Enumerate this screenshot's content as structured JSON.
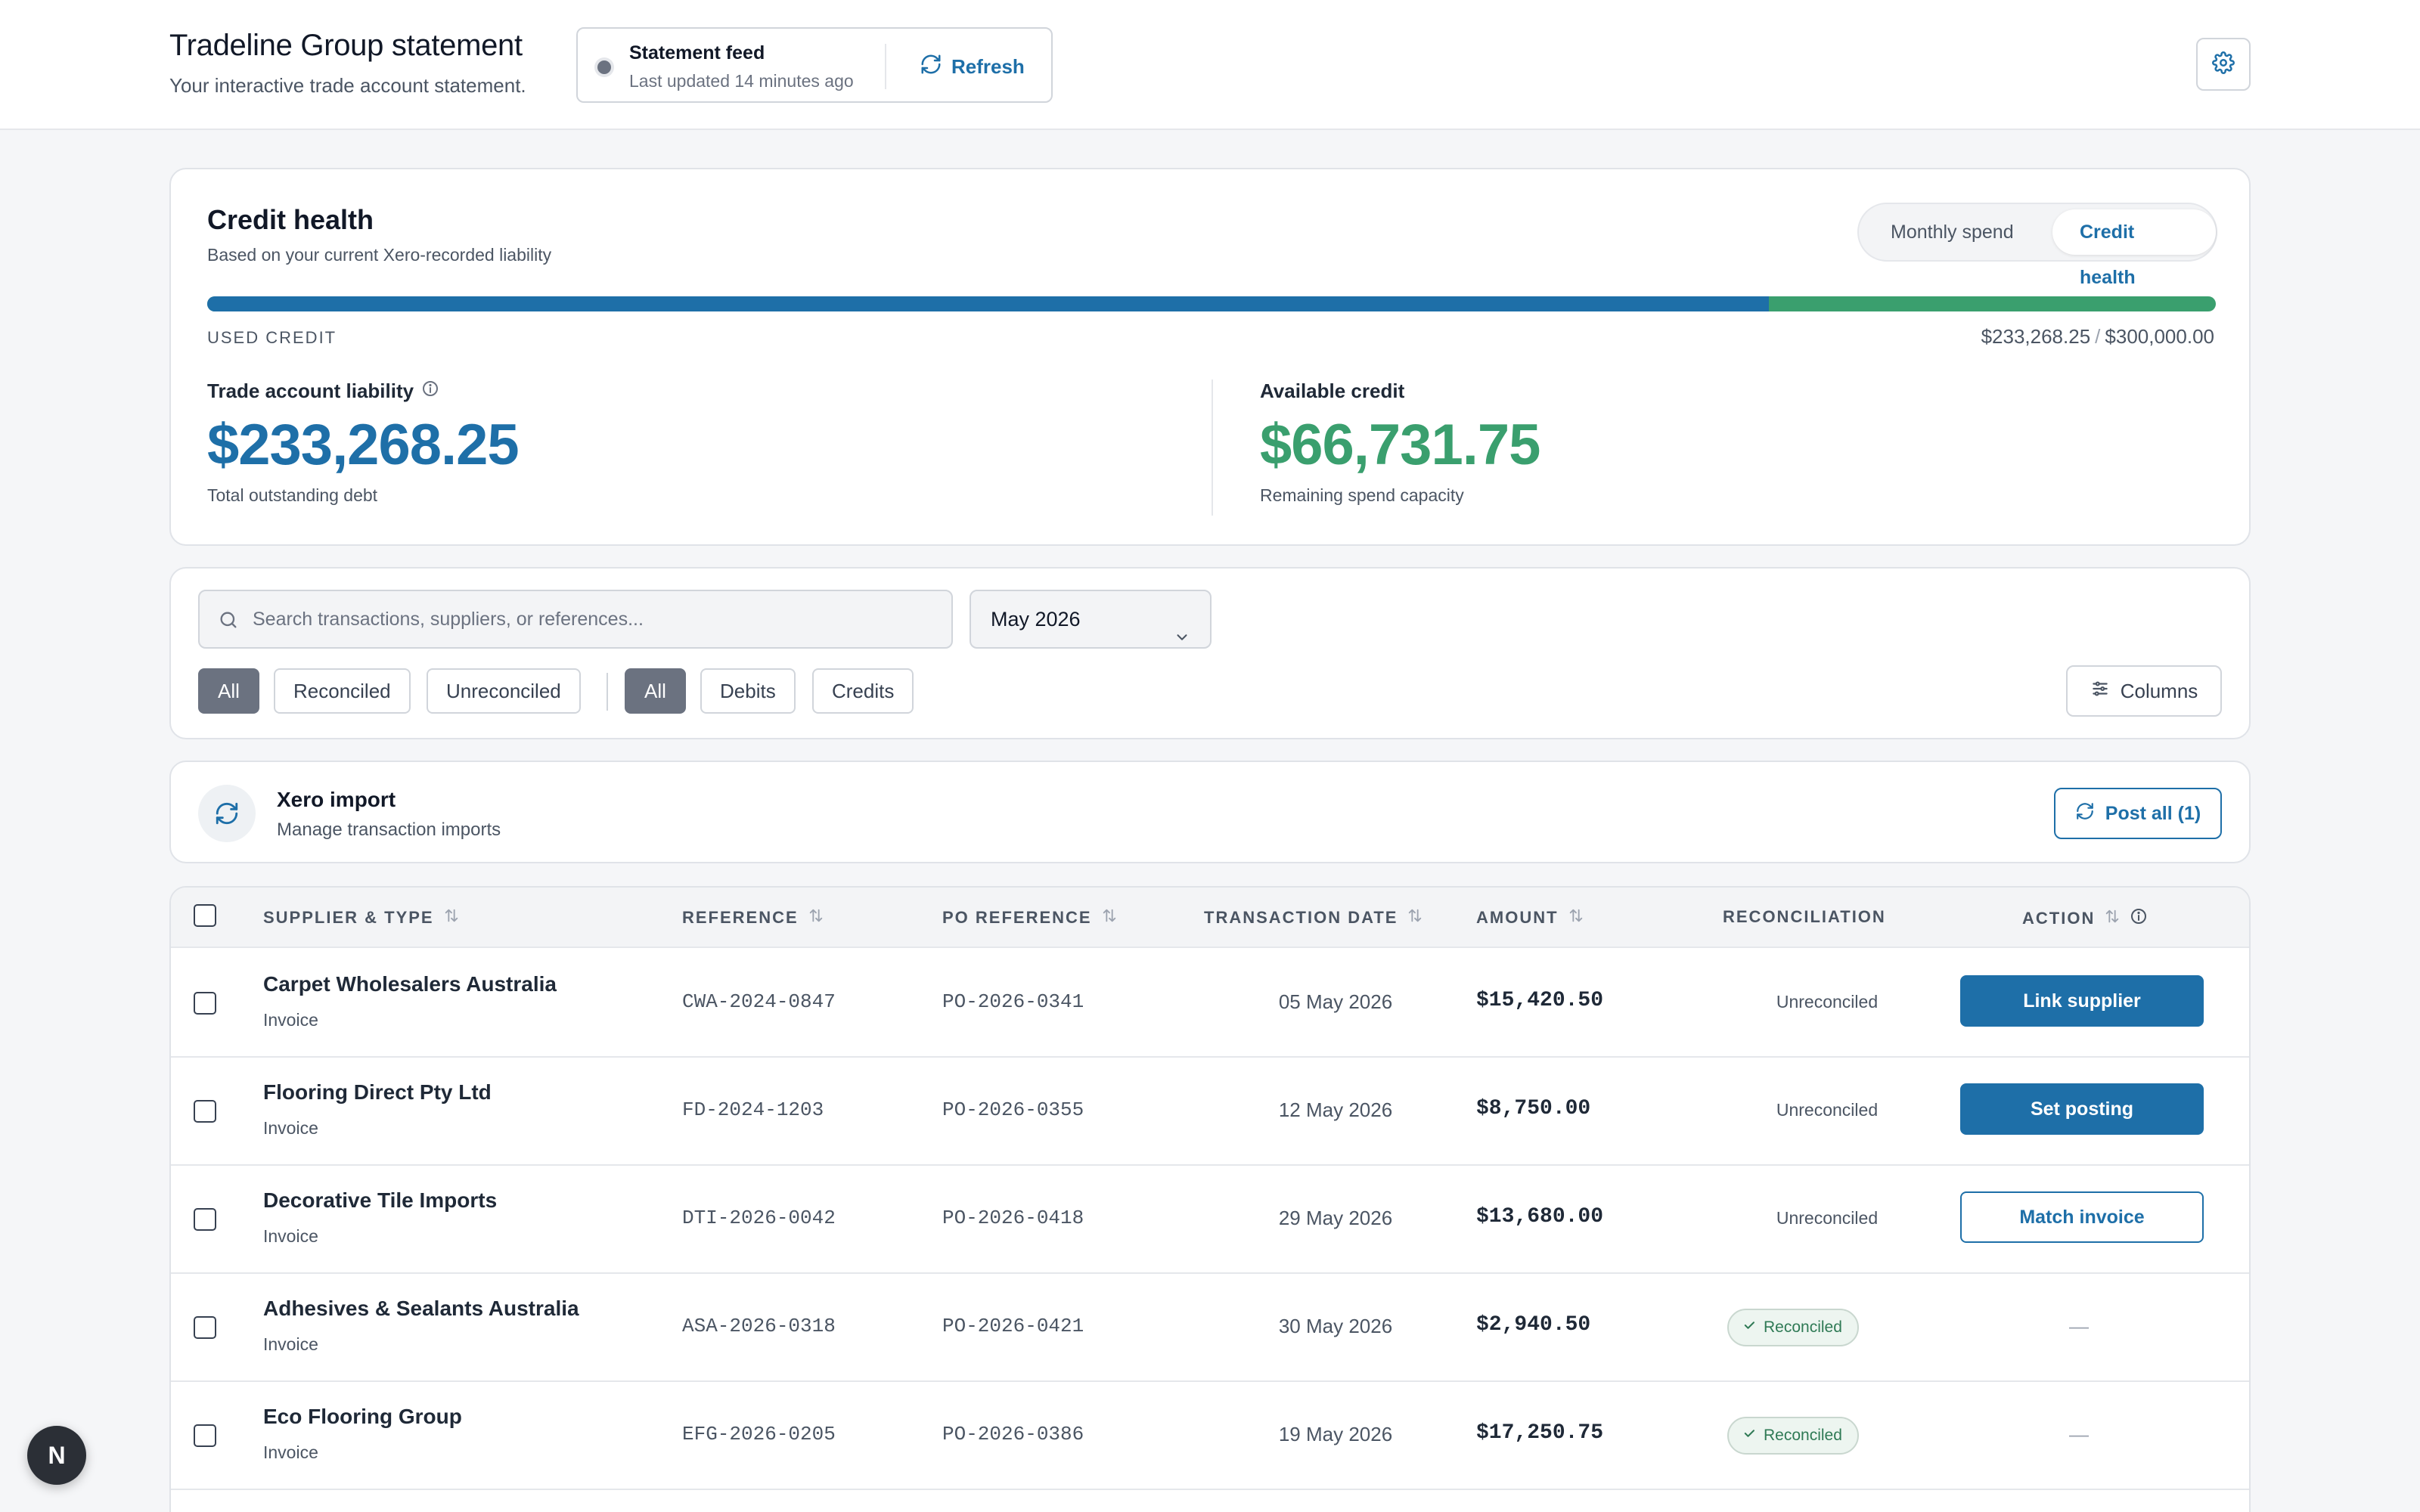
{
  "header": {
    "title": "Tradeline Group statement",
    "subtitle": "Your interactive trade account statement.",
    "feed": {
      "title": "Statement feed",
      "updated": "Last updated 14 minutes ago",
      "refresh_label": "Refresh"
    },
    "settings_icon": "gear-icon"
  },
  "credit_health": {
    "title": "Credit health",
    "subtitle": "Based on your current Xero-recorded liability",
    "toggle": {
      "monthly_label": "Monthly spend",
      "credit_label": "Credit health",
      "active": "Credit health"
    },
    "used_label": "USED CREDIT",
    "used_amount": "$233,268.25",
    "limit_amount": "$300,000.00",
    "used_fraction": 0.7776,
    "colors": {
      "used": "#1e6fa8",
      "available": "#3a9f6e"
    },
    "liability": {
      "label": "Trade account liability",
      "value": "$233,268.25",
      "note": "Total outstanding debt"
    },
    "available": {
      "label": "Available credit",
      "value": "$66,731.75",
      "note": "Remaining spend capacity"
    }
  },
  "filters": {
    "search_placeholder": "Search transactions, suppliers, or references...",
    "month": "May 2026",
    "reconciliation_chips": [
      "All",
      "Reconciled",
      "Unreconciled"
    ],
    "type_chips": [
      "All",
      "Debits",
      "Credits"
    ],
    "active_reconciliation": "All",
    "active_type": "All",
    "columns_label": "Columns"
  },
  "xero": {
    "title": "Xero import",
    "subtitle": "Manage transaction imports",
    "post_all_label": "Post all (1)"
  },
  "table": {
    "headers": {
      "supplier": "SUPPLIER & TYPE",
      "reference": "REFERENCE",
      "po_reference": "PO REFERENCE",
      "date": "TRANSACTION DATE",
      "amount": "AMOUNT",
      "reconciliation": "RECONCILIATION",
      "action": "ACTION"
    },
    "rows": [
      {
        "supplier": "Carpet Wholesalers Australia",
        "type": "Invoice",
        "reference": "CWA-2024-0847",
        "po": "PO-2026-0341",
        "date": "05 May 2026",
        "amount": "$15,420.50",
        "reconciliation": "Unreconciled",
        "action": "Link supplier"
      },
      {
        "supplier": "Flooring Direct Pty Ltd",
        "type": "Invoice",
        "reference": "FD-2024-1203",
        "po": "PO-2026-0355",
        "date": "12 May 2026",
        "amount": "$8,750.00",
        "reconciliation": "Unreconciled",
        "action": "Set posting"
      },
      {
        "supplier": "Decorative Tile Imports",
        "type": "Invoice",
        "reference": "DTI-2026-0042",
        "po": "PO-2026-0418",
        "date": "29 May 2026",
        "amount": "$13,680.00",
        "reconciliation": "Unreconciled",
        "action": "Match invoice"
      },
      {
        "supplier": "Adhesives & Sealants Australia",
        "type": "Invoice",
        "reference": "ASA-2026-0318",
        "po": "PO-2026-0421",
        "date": "30 May 2026",
        "amount": "$2,940.50",
        "reconciliation": "Reconciled",
        "action": "—"
      },
      {
        "supplier": "Eco Flooring Group",
        "type": "Invoice",
        "reference": "EFG-2026-0205",
        "po": "PO-2026-0386",
        "date": "19 May 2026",
        "amount": "$17,250.75",
        "reconciliation": "Reconciled",
        "action": "—"
      }
    ]
  },
  "floating_badge": {
    "letter": "N"
  }
}
